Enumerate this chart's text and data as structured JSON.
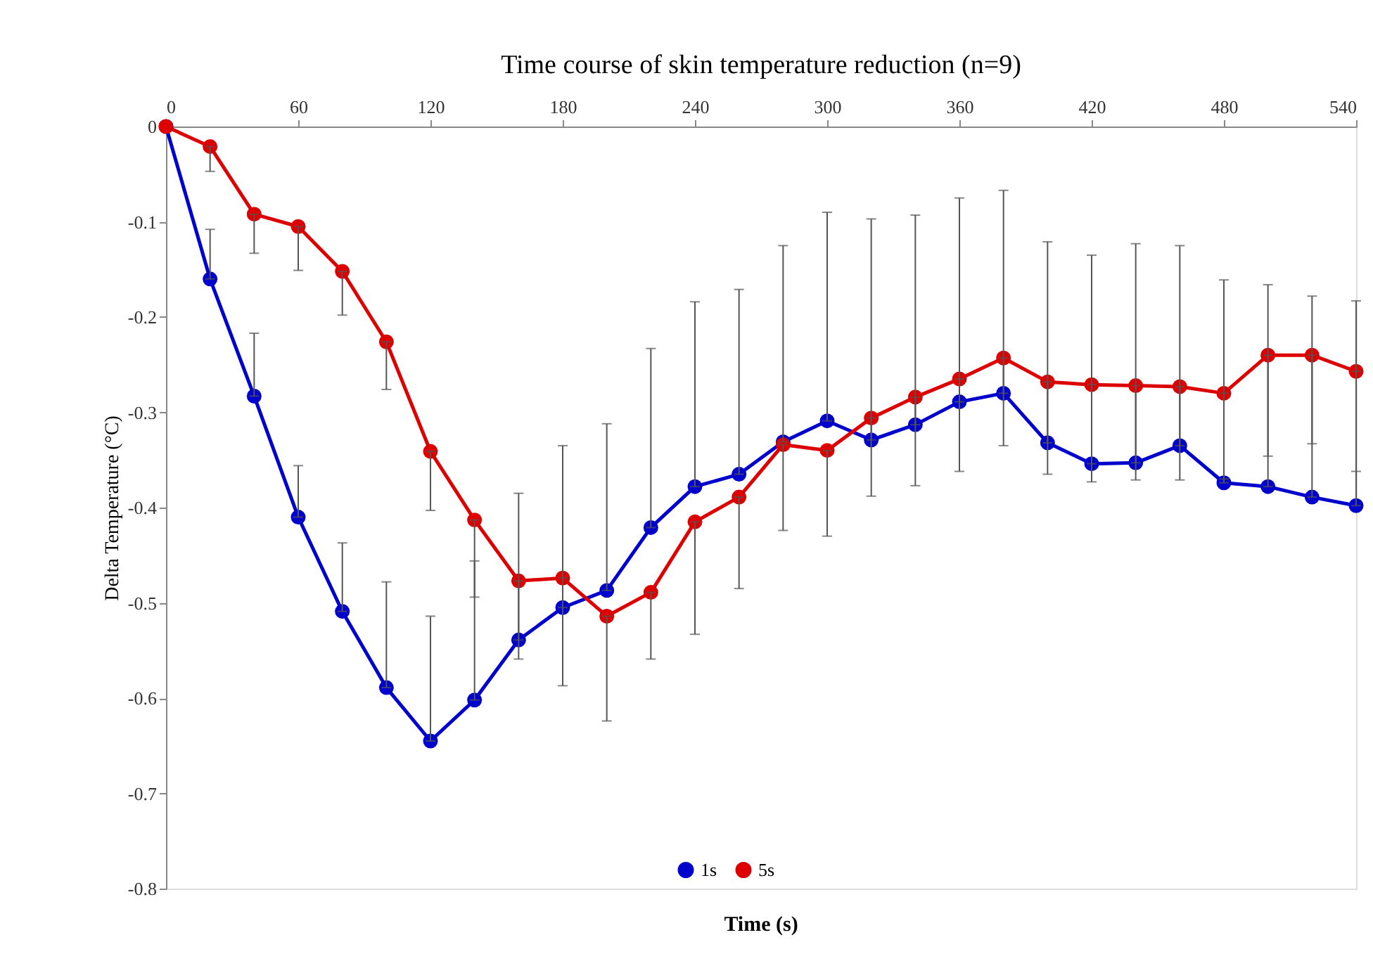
{
  "chart_data": {
    "type": "line",
    "title": "Time course of skin temperature reduction (n=9)",
    "xlabel": "Time (s)",
    "ylabel": "Delta Temperature (°C)",
    "x": [
      0,
      20,
      40,
      60,
      80,
      100,
      120,
      140,
      160,
      180,
      200,
      220,
      240,
      260,
      280,
      300,
      320,
      340,
      360,
      380,
      400,
      420,
      440,
      460,
      480,
      500,
      520,
      540
    ],
    "series": [
      {
        "name": "1s",
        "color": "#0000cc",
        "values": [
          0,
          -0.16,
          -0.283,
          -0.41,
          -0.509,
          -0.589,
          -0.645,
          -0.602,
          -0.539,
          -0.505,
          -0.487,
          -0.421,
          -0.378,
          -0.365,
          -0.331,
          -0.309,
          -0.329,
          -0.313,
          -0.289,
          -0.28,
          -0.332,
          -0.354,
          -0.353,
          -0.335,
          -0.374,
          -0.378,
          -0.389,
          -0.398
        ],
        "errors": [
          null,
          [
            -0.16,
            -0.108
          ],
          [
            -0.283,
            -0.217
          ],
          [
            -0.41,
            -0.356
          ],
          [
            -0.509,
            -0.437
          ],
          [
            -0.589,
            -0.478
          ],
          [
            -0.645,
            -0.514
          ],
          [
            -0.602,
            -0.456
          ],
          [
            -0.539,
            -0.385
          ],
          [
            -0.505,
            -0.335
          ],
          [
            -0.487,
            -0.312
          ],
          [
            -0.421,
            -0.233
          ],
          [
            -0.378,
            -0.184
          ],
          [
            -0.365,
            -0.171
          ],
          [
            -0.331,
            -0.125
          ],
          [
            -0.309,
            -0.09
          ],
          [
            -0.329,
            -0.097
          ],
          [
            -0.313,
            -0.093
          ],
          [
            -0.289,
            -0.075
          ],
          [
            -0.28,
            -0.067
          ],
          [
            -0.332,
            -0.121
          ],
          [
            -0.354,
            -0.135
          ],
          [
            -0.353,
            -0.123
          ],
          [
            -0.335,
            -0.125
          ],
          [
            -0.374,
            -0.161
          ],
          [
            -0.378,
            -0.166
          ],
          [
            -0.389,
            -0.178
          ],
          [
            -0.398,
            -0.183
          ]
        ]
      },
      {
        "name": "5s",
        "color": "#dd0000",
        "values": [
          0,
          -0.021,
          -0.092,
          -0.105,
          -0.152,
          -0.226,
          -0.341,
          -0.413,
          -0.477,
          -0.474,
          -0.514,
          -0.489,
          -0.415,
          -0.389,
          -0.334,
          -0.34,
          -0.306,
          -0.284,
          -0.265,
          -0.243,
          -0.268,
          -0.271,
          -0.272,
          -0.273,
          -0.28,
          -0.24,
          -0.24,
          -0.257
        ],
        "errors": [
          null,
          [
            -0.047,
            -0.021
          ],
          [
            -0.133,
            -0.092
          ],
          [
            -0.151,
            -0.105
          ],
          [
            -0.198,
            -0.152
          ],
          [
            -0.276,
            -0.226
          ],
          [
            -0.403,
            -0.341
          ],
          [
            -0.494,
            -0.413
          ],
          [
            -0.559,
            -0.477
          ],
          [
            -0.587,
            -0.474
          ],
          [
            -0.624,
            -0.514
          ],
          [
            -0.559,
            -0.489
          ],
          [
            -0.533,
            -0.415
          ],
          [
            -0.485,
            -0.389
          ],
          [
            -0.424,
            -0.334
          ],
          [
            -0.43,
            -0.34
          ],
          [
            -0.388,
            -0.306
          ],
          [
            -0.377,
            -0.284
          ],
          [
            -0.362,
            -0.265
          ],
          [
            -0.335,
            -0.243
          ],
          [
            -0.365,
            -0.268
          ],
          [
            -0.373,
            -0.271
          ],
          [
            -0.371,
            -0.272
          ],
          [
            -0.371,
            -0.273
          ],
          [
            -0.37,
            -0.28
          ],
          [
            -0.346,
            -0.24
          ],
          [
            -0.333,
            -0.24
          ],
          [
            -0.362,
            -0.257
          ]
        ]
      }
    ],
    "xlim": [
      0,
      540
    ],
    "xticks": [
      0,
      60,
      120,
      180,
      240,
      300,
      360,
      420,
      480,
      540
    ],
    "ylim": [
      -0.8,
      0
    ],
    "yticks": [
      {
        "value": 0,
        "label": "0"
      },
      -0.1,
      -0.2,
      -0.3,
      -0.4,
      -0.5,
      -0.6,
      -0.7,
      -0.8
    ],
    "grid": false,
    "legend": "bottom",
    "marker": "circle",
    "line_style": "solid"
  }
}
